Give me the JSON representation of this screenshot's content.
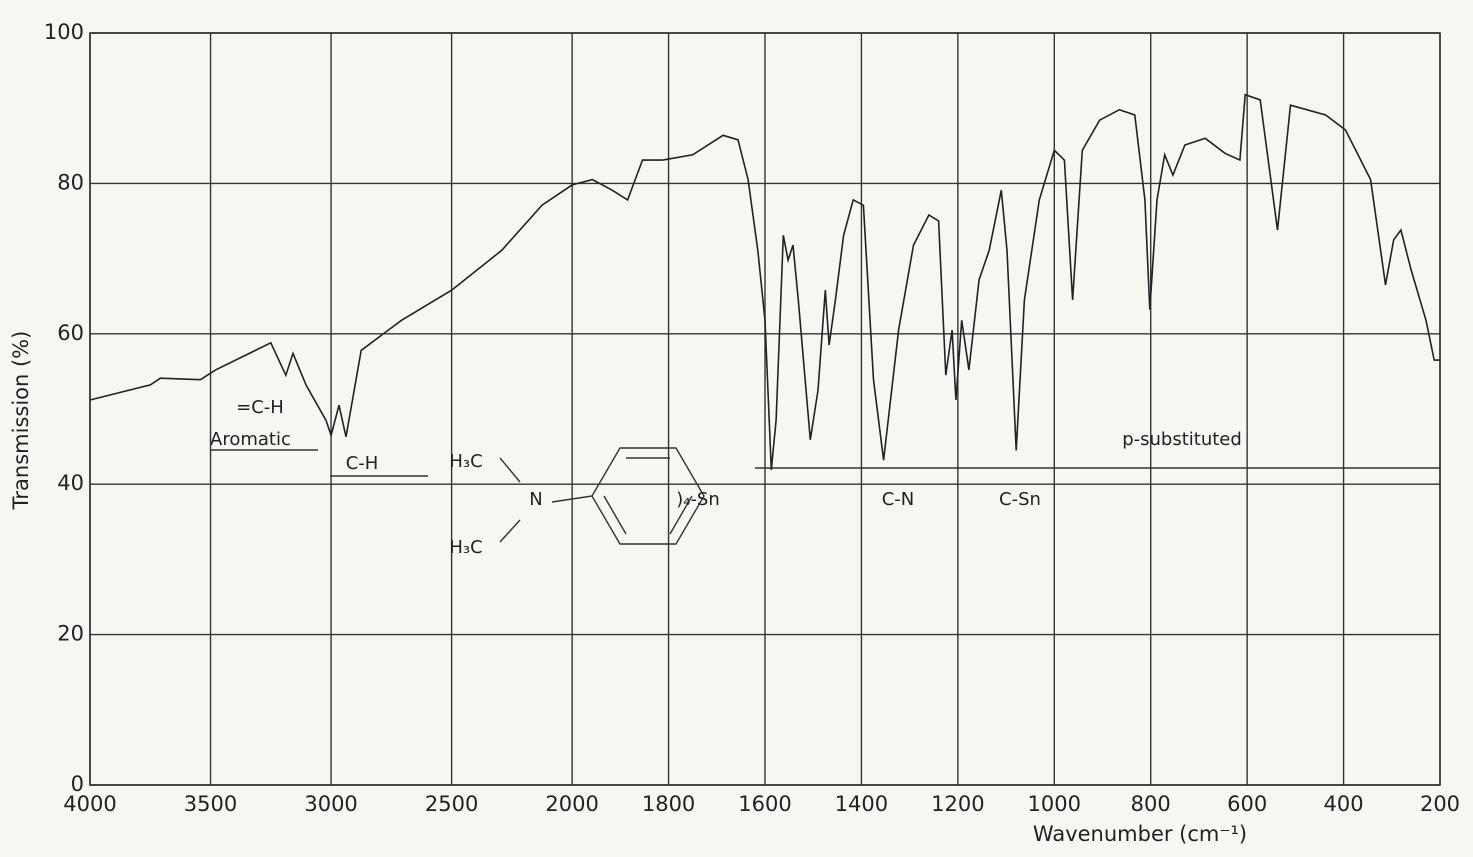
{
  "chart_data": {
    "type": "line",
    "xlabel": "Wavenumber (cm⁻¹)",
    "ylabel": "Transmission (%)",
    "xlim": [
      4000,
      200
    ],
    "xscale": {
      "break": 2000,
      "ratio": 2
    },
    "xticks": [
      4000,
      3500,
      3000,
      2500,
      2000,
      1800,
      1600,
      1400,
      1200,
      1000,
      800,
      600,
      400,
      200
    ],
    "ylim": [
      0,
      100
    ],
    "yticks": [
      0,
      20,
      40,
      60,
      80,
      100
    ],
    "grid": true,
    "color": "#222222",
    "x": [
      4000,
      3750,
      3708,
      3542,
      3479,
      3250,
      3188,
      3158,
      3104,
      3021,
      3000,
      2967,
      2938,
      2875,
      2708,
      2500,
      2292,
      2125,
      2000,
      1958,
      1917,
      1885,
      1854,
      1812,
      1750,
      1687,
      1656,
      1635,
      1615,
      1600,
      1587,
      1577,
      1562,
      1552,
      1542,
      1531,
      1506,
      1490,
      1475,
      1467,
      1454,
      1437,
      1417,
      1396,
      1375,
      1354,
      1323,
      1292,
      1260,
      1240,
      1225,
      1212,
      1204,
      1192,
      1177,
      1156,
      1135,
      1110,
      1098,
      1079,
      1062,
      1031,
      1000,
      979,
      962,
      942,
      906,
      865,
      833,
      812,
      802,
      787,
      771,
      754,
      729,
      687,
      646,
      615,
      604,
      573,
      537,
      510,
      437,
      396,
      344,
      313,
      296,
      281,
      260,
      229,
      212,
      200
    ],
    "values": [
      51.2,
      53.2,
      54.1,
      53.9,
      55.2,
      58.8,
      54.5,
      57.4,
      53.2,
      48.5,
      46.5,
      50.5,
      46.3,
      57.8,
      61.8,
      65.8,
      71.1,
      77.1,
      79.8,
      80.5,
      79.1,
      77.8,
      83.1,
      83.1,
      83.8,
      86.4,
      85.8,
      80.5,
      71.1,
      61.8,
      41.9,
      48.5,
      73.1,
      69.8,
      71.8,
      64.5,
      45.9,
      52.5,
      65.8,
      58.5,
      64.5,
      73.1,
      77.8,
      77.1,
      53.9,
      43.2,
      60.5,
      71.8,
      75.8,
      75.0,
      54.5,
      60.5,
      51.2,
      61.8,
      55.2,
      67.2,
      71.1,
      79.1,
      71.1,
      44.5,
      64.5,
      77.8,
      84.4,
      83.1,
      64.5,
      84.4,
      88.4,
      89.8,
      89.1,
      77.8,
      63.2,
      77.8,
      83.8,
      81.1,
      85.1,
      86.0,
      84.0,
      83.1,
      91.8,
      91.1,
      73.8,
      90.4,
      89.1,
      87.1,
      80.5,
      66.5,
      72.5,
      73.8,
      68.5,
      61.8,
      56.5,
      56.5
    ],
    "annotations": [
      "=C-H",
      "Aromatic",
      "C-H",
      "H₃C",
      "N",
      "H₃C",
      ")₄-Sn",
      "C-N",
      "C-Sn",
      "p-substituted"
    ]
  }
}
